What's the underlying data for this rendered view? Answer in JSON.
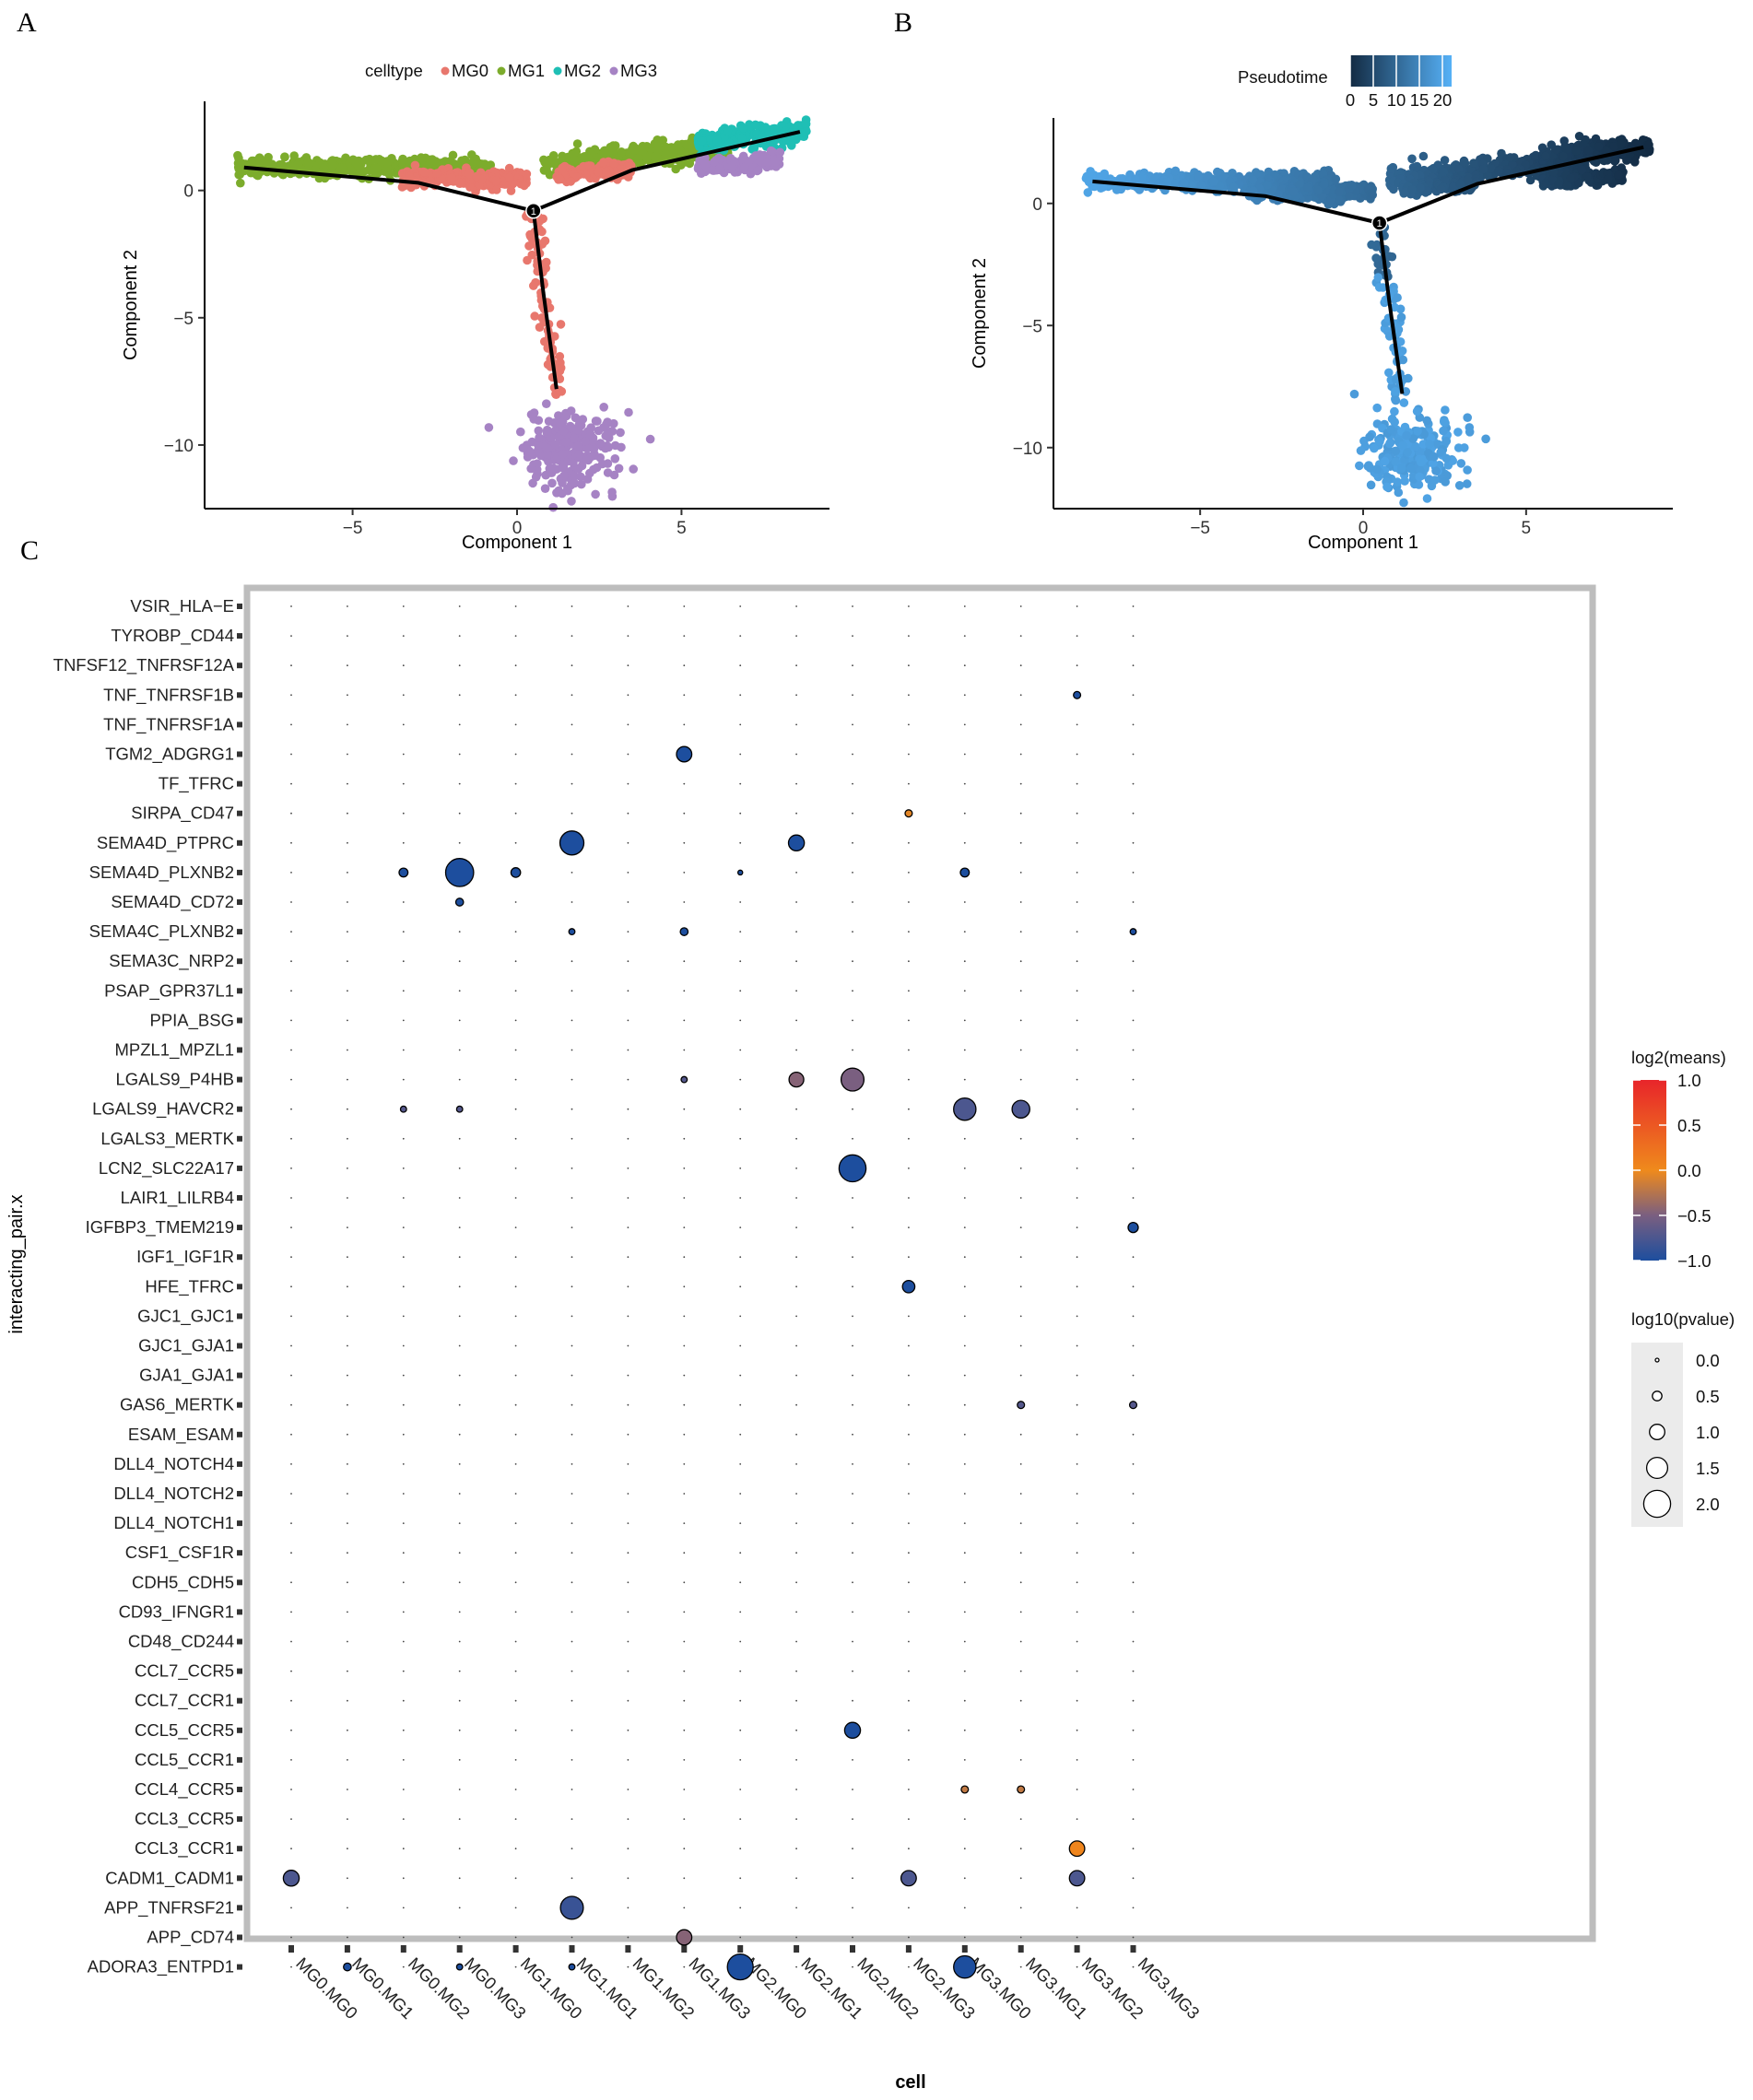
{
  "panels": {
    "A": "A",
    "B": "B",
    "C": "C"
  },
  "colors": {
    "MG0": "#e8776d",
    "MG1": "#7cac2c",
    "MG2": "#1fbfb5",
    "MG3": "#a683c4",
    "pseudo_low": "#132b43",
    "pseudo_high": "#56b1f7",
    "means_high": "#e8252a",
    "means_mid": "#ef8a1c",
    "means_low": "#1d4e9e",
    "frame": "#bdbdbd"
  },
  "chart_data": [
    {
      "type": "scatter",
      "panel": "A",
      "title": "",
      "xlabel": "Component 1",
      "ylabel": "Component 2",
      "xlim": [
        -9.5,
        9.5
      ],
      "ylim": [
        -12.5,
        3.5
      ],
      "xticks": [
        -5,
        0,
        5
      ],
      "xtick_labels": [
        "−5",
        "0",
        "5"
      ],
      "yticks": [
        0,
        -5,
        -10
      ],
      "ytick_labels": [
        "0",
        "−5",
        "−10"
      ],
      "legend": {
        "title": "celltype",
        "position": "top",
        "entries": [
          "MG0",
          "MG1",
          "MG2",
          "MG3"
        ]
      },
      "trajectory": {
        "branch_point": [
          0.5,
          -0.8
        ],
        "branches": [
          [
            [
              0.5,
              -0.8
            ],
            [
              -3,
              0.3
            ],
            [
              -8.3,
              0.9
            ]
          ],
          [
            [
              0.5,
              -0.8
            ],
            [
              3.5,
              0.8
            ],
            [
              8.6,
              2.3
            ]
          ],
          [
            [
              0.5,
              -0.8
            ],
            [
              0.8,
              -4
            ],
            [
              1.2,
              -7.8
            ]
          ]
        ]
      },
      "clusters": [
        {
          "series": "MG1",
          "x_range": [
            -8.5,
            -0.8
          ],
          "y_center": 0.9,
          "y_spread": 0.35
        },
        {
          "series": "MG0",
          "x_range": [
            -3.5,
            0.3
          ],
          "y_center": 0.45,
          "y_spread": 0.35
        },
        {
          "series": "MG1",
          "x_range": [
            0.8,
            6.5
          ],
          "y_center": 1.0,
          "y_spread": 0.45
        },
        {
          "series": "MG0",
          "x_range": [
            1.2,
            3.5
          ],
          "y_center": 0.6,
          "y_spread": 0.3
        },
        {
          "series": "MG2",
          "x_range": [
            5.5,
            8.8
          ],
          "y_center": 1.9,
          "y_spread": 0.45
        },
        {
          "series": "MG3",
          "x_range": [
            5.5,
            8.0
          ],
          "y_center": 0.9,
          "y_spread": 0.3
        },
        {
          "series": "MG0",
          "x_range": [
            0.4,
            1.3
          ],
          "y_center": -3.5,
          "y_spread": 2.2
        },
        {
          "series": "MG3",
          "x_range": [
            -0.3,
            3.3
          ],
          "y_center": -10.2,
          "y_spread": 1.1
        }
      ]
    },
    {
      "type": "scatter",
      "panel": "B",
      "title": "",
      "xlabel": "Component 1",
      "ylabel": "Component 2",
      "xlim": [
        -9.5,
        9.5
      ],
      "ylim": [
        -12.5,
        3.5
      ],
      "xticks": [
        -5,
        0,
        5
      ],
      "xtick_labels": [
        "−5",
        "0",
        "5"
      ],
      "yticks": [
        0,
        -5,
        -10
      ],
      "ytick_labels": [
        "0",
        "−5",
        "−10"
      ],
      "legend": {
        "title": "Pseudotime",
        "position": "top",
        "range": [
          0,
          22
        ],
        "ticks": [
          0,
          5,
          10,
          15,
          20
        ],
        "tick_labels": [
          "0",
          "5",
          "10",
          "15",
          "20"
        ]
      },
      "color_note": "pseudotime increases from right branch (dark) through left branch to bottom cluster (light)"
    },
    {
      "type": "scatter",
      "panel": "C",
      "xlabel": "cell",
      "ylabel": "interacting_pair.x",
      "x_categories": [
        "MG0.MG0",
        "MG0.MG1",
        "MG0.MG2",
        "MG0.MG3",
        "MG1.MG0",
        "MG1.MG1",
        "MG1.MG2",
        "MG1.MG3",
        "MG2.MG0",
        "MG2.MG1",
        "MG2.MG2",
        "MG2.MG3",
        "MG3.MG0",
        "MG3.MG1",
        "MG3.MG2",
        "MG3.MG3"
      ],
      "y_categories": [
        "VSIR_HLA−E",
        "TYROBP_CD44",
        "TNFSF12_TNFRSF12A",
        "TNF_TNFRSF1B",
        "TNF_TNFRSF1A",
        "TGM2_ADGRG1",
        "TF_TFRC",
        "SIRPA_CD47",
        "SEMA4D_PTPRC",
        "SEMA4D_PLXNB2",
        "SEMA4D_CD72",
        "SEMA4C_PLXNB2",
        "SEMA3C_NRP2",
        "PSAP_GPR37L1",
        "PPIA_BSG",
        "MPZL1_MPZL1",
        "LGALS9_P4HB",
        "LGALS9_HAVCR2",
        "LGALS3_MERTK",
        "LCN2_SLC22A17",
        "LAIR1_LILRB4",
        "IGFBP3_TMEM219",
        "IGF1_IGF1R",
        "HFE_TFRC",
        "GJC1_GJC1",
        "GJC1_GJA1",
        "GJA1_GJA1",
        "GAS6_MERTK",
        "ESAM_ESAM",
        "DLL4_NOTCH4",
        "DLL4_NOTCH2",
        "DLL4_NOTCH1",
        "CSF1_CSF1R",
        "CDH5_CDH5",
        "CD93_IFNGR1",
        "CD48_CD244",
        "CCL7_CCR5",
        "CCL7_CCR1",
        "CCL5_CCR5",
        "CCL5_CCR1",
        "CCL4_CCR5",
        "CCL3_CCR5",
        "CCL3_CCR1",
        "CADM1_CADM1",
        "APP_TNFRSF21",
        "APP_CD74",
        "ADORA3_ENTPD1"
      ],
      "color_legend": {
        "title": "log2(means)",
        "range": [
          -1.0,
          1.0
        ],
        "ticks": [
          1.0,
          0.5,
          0.0,
          -0.5,
          -1.0
        ],
        "tick_labels": [
          "1.0",
          "0.5",
          "0.0",
          "−0.5",
          "−1.0"
        ]
      },
      "size_legend": {
        "title": "log10(pvalue)",
        "ticks": [
          0.0,
          0.5,
          1.0,
          1.5,
          2.0
        ],
        "tick_labels": [
          "0.0",
          "0.5",
          "1.0",
          "1.5",
          "2.0"
        ]
      },
      "points": [
        {
          "pair": "TNF_TNFRSF1B",
          "cell": "MG3.MG2",
          "log10p": 0.3,
          "log2mean": -1.0
        },
        {
          "pair": "TGM2_ADGRG1",
          "cell": "MG1.MG3",
          "log10p": 1.0,
          "log2mean": -1.0
        },
        {
          "pair": "SIRPA_CD47",
          "cell": "MG2.MG3",
          "log10p": 0.3,
          "log2mean": -0.05
        },
        {
          "pair": "SEMA4D_PTPRC",
          "cell": "MG1.MG1",
          "log10p": 1.75,
          "log2mean": -1.0
        },
        {
          "pair": "SEMA4D_PTPRC",
          "cell": "MG2.MG1",
          "log10p": 1.05,
          "log2mean": -1.0
        },
        {
          "pair": "SEMA4D_PLXNB2",
          "cell": "MG0.MG2",
          "log10p": 0.45,
          "log2mean": -1.0
        },
        {
          "pair": "SEMA4D_PLXNB2",
          "cell": "MG0.MG3",
          "log10p": 2.1,
          "log2mean": -1.0
        },
        {
          "pair": "SEMA4D_PLXNB2",
          "cell": "MG1.MG0",
          "log10p": 0.5,
          "log2mean": -1.0
        },
        {
          "pair": "SEMA4D_PLXNB2",
          "cell": "MG2.MG0",
          "log10p": 0.1,
          "log2mean": -1.0
        },
        {
          "pair": "SEMA4D_PLXNB2",
          "cell": "MG3.MG0",
          "log10p": 0.45,
          "log2mean": -1.0
        },
        {
          "pair": "SEMA4D_CD72",
          "cell": "MG0.MG3",
          "log10p": 0.35,
          "log2mean": -1.0
        },
        {
          "pair": "SEMA4C_PLXNB2",
          "cell": "MG1.MG1",
          "log10p": 0.2,
          "log2mean": -1.0
        },
        {
          "pair": "SEMA4C_PLXNB2",
          "cell": "MG1.MG3",
          "log10p": 0.35,
          "log2mean": -1.0
        },
        {
          "pair": "SEMA4C_PLXNB2",
          "cell": "MG3.MG3",
          "log10p": 0.2,
          "log2mean": -1.0
        },
        {
          "pair": "LGALS9_P4HB",
          "cell": "MG1.MG3",
          "log10p": 0.2,
          "log2mean": -0.7
        },
        {
          "pair": "LGALS9_P4HB",
          "cell": "MG2.MG1",
          "log10p": 0.95,
          "log2mean": -0.45
        },
        {
          "pair": "LGALS9_P4HB",
          "cell": "MG2.MG2",
          "log10p": 1.65,
          "log2mean": -0.5
        },
        {
          "pair": "LGALS9_HAVCR2",
          "cell": "MG0.MG2",
          "log10p": 0.2,
          "log2mean": -0.7
        },
        {
          "pair": "LGALS9_HAVCR2",
          "cell": "MG0.MG3",
          "log10p": 0.2,
          "log2mean": -0.7
        },
        {
          "pair": "LGALS9_HAVCR2",
          "cell": "MG3.MG0",
          "log10p": 1.6,
          "log2mean": -0.75
        },
        {
          "pair": "LGALS9_HAVCR2",
          "cell": "MG3.MG1",
          "log10p": 1.2,
          "log2mean": -0.75
        },
        {
          "pair": "LCN2_SLC22A17",
          "cell": "MG2.MG2",
          "log10p": 2.0,
          "log2mean": -1.0
        },
        {
          "pair": "IGFBP3_TMEM219",
          "cell": "MG3.MG3",
          "log10p": 0.55,
          "log2mean": -1.0
        },
        {
          "pair": "HFE_TFRC",
          "cell": "MG2.MG3",
          "log10p": 0.75,
          "log2mean": -1.0
        },
        {
          "pair": "GAS6_MERTK",
          "cell": "MG3.MG1",
          "log10p": 0.3,
          "log2mean": -0.7
        },
        {
          "pair": "GAS6_MERTK",
          "cell": "MG3.MG3",
          "log10p": 0.3,
          "log2mean": -0.7
        },
        {
          "pair": "CCL5_CCR5",
          "cell": "MG2.MG2",
          "log10p": 1.05,
          "log2mean": -1.0
        },
        {
          "pair": "CCL4_CCR5",
          "cell": "MG3.MG0",
          "log10p": 0.3,
          "log2mean": -0.2
        },
        {
          "pair": "CCL4_CCR5",
          "cell": "MG3.MG1",
          "log10p": 0.3,
          "log2mean": -0.2
        },
        {
          "pair": "CCL3_CCR1",
          "cell": "MG3.MG2",
          "log10p": 1.0,
          "log2mean": 0.05
        },
        {
          "pair": "CADM1_CADM1",
          "cell": "MG0.MG0",
          "log10p": 1.05,
          "log2mean": -0.75
        },
        {
          "pair": "CADM1_CADM1",
          "cell": "MG2.MG3",
          "log10p": 1.0,
          "log2mean": -0.75
        },
        {
          "pair": "CADM1_CADM1",
          "cell": "MG3.MG2",
          "log10p": 1.0,
          "log2mean": -0.75
        },
        {
          "pair": "APP_TNFRSF21",
          "cell": "MG1.MG1",
          "log10p": 1.65,
          "log2mean": -0.85
        },
        {
          "pair": "APP_CD74",
          "cell": "MG1.MG3",
          "log10p": 1.0,
          "log2mean": -0.45
        },
        {
          "pair": "ADORA3_ENTPD1",
          "cell": "MG0.MG1",
          "log10p": 0.35,
          "log2mean": -1.0
        },
        {
          "pair": "ADORA3_ENTPD1",
          "cell": "MG0.MG3",
          "log10p": 0.2,
          "log2mean": -1.0
        },
        {
          "pair": "ADORA3_ENTPD1",
          "cell": "MG1.MG1",
          "log10p": 0.2,
          "log2mean": -1.0
        },
        {
          "pair": "ADORA3_ENTPD1",
          "cell": "MG2.MG0",
          "log10p": 1.9,
          "log2mean": -1.0
        },
        {
          "pair": "ADORA3_ENTPD1",
          "cell": "MG3.MG0",
          "log10p": 1.6,
          "log2mean": -1.0
        }
      ]
    }
  ]
}
